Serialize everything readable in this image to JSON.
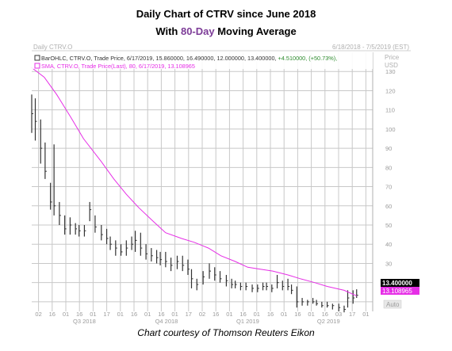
{
  "header": {
    "title_line1": "Daily Chart of CTRV since June 2018",
    "title_line2_pre": "With ",
    "title_line2_accent": "80-Day",
    "title_line2_post": " Moving Average"
  },
  "chart_header": {
    "label": "Daily CTRV.O",
    "date_range": "6/18/2018 - 7/5/2019 (EST)",
    "price_label": "Price",
    "currency_label": "USD",
    "auto_label": "Auto"
  },
  "legend": {
    "ohlc_line": "BarOHLC, CTRV.O, Trade Price, 6/17/2019, 15.860000, 16.490000, 12.000000, 13.400000,",
    "ohlc_change": "+4.510000, (+50.73%),",
    "sma_line": "SMA, CTRV.O, Trade Price(Last), 80, 6/17/2019, 13.108965"
  },
  "price_tags": {
    "last": "13.400000",
    "sma": "13.108965"
  },
  "caption": "Chart courtesy of Thomson Reuters Eikon",
  "colors": {
    "sma_line": "#e62ee6",
    "bars": "#333333",
    "grid": "#c8c8c8",
    "accent": "#7d3c98",
    "change_text": "#2e8b2e"
  },
  "chart_data": {
    "type": "line",
    "title": "Daily Chart of CTRV since June 2018 With 80-Day Moving Average",
    "ylim": [
      5,
      140
    ],
    "y_ticks": [
      10,
      20,
      30,
      40,
      50,
      60,
      70,
      80,
      90,
      100,
      110,
      120,
      130
    ],
    "x_tick_labels": [
      "02",
      "16",
      "01",
      "16",
      "01",
      "17",
      "01",
      "16",
      "01",
      "16",
      "01",
      "17",
      "02",
      "16",
      "01",
      "16",
      "01",
      "16",
      "01",
      "16",
      "01",
      "16",
      "03",
      "17",
      "01"
    ],
    "quarter_labels": [
      "Q3 2018",
      "Q4 2018",
      "Q1 2019",
      "Q2 2019"
    ],
    "grid": true,
    "x_range": [
      "2018-06-18",
      "2019-07-05"
    ],
    "series": [
      {
        "name": "BarOHLC",
        "kind": "ohlc",
        "x": [
          "2018-06-18",
          "2018-06-22",
          "2018-06-28",
          "2018-07-03",
          "2018-07-09",
          "2018-07-13",
          "2018-07-19",
          "2018-07-25",
          "2018-07-31",
          "2018-08-06",
          "2018-08-10",
          "2018-08-16",
          "2018-08-22",
          "2018-08-28",
          "2018-09-04",
          "2018-09-10",
          "2018-09-14",
          "2018-09-20",
          "2018-09-26",
          "2018-10-02",
          "2018-10-08",
          "2018-10-12",
          "2018-10-18",
          "2018-10-24",
          "2018-10-30",
          "2018-11-05",
          "2018-11-09",
          "2018-11-15",
          "2018-11-21",
          "2018-11-28",
          "2018-12-04",
          "2018-12-10",
          "2018-12-14",
          "2018-12-20",
          "2018-12-27",
          "2019-01-03",
          "2019-01-09",
          "2019-01-15",
          "2019-01-22",
          "2019-01-28",
          "2019-02-01",
          "2019-02-07",
          "2019-02-13",
          "2019-02-20",
          "2019-02-26",
          "2019-03-04",
          "2019-03-08",
          "2019-03-14",
          "2019-03-20",
          "2019-03-26",
          "2019-04-01",
          "2019-04-05",
          "2019-04-11",
          "2019-04-17",
          "2019-04-23",
          "2019-04-29",
          "2019-05-03",
          "2019-05-09",
          "2019-05-15",
          "2019-05-21",
          "2019-05-28",
          "2019-06-03",
          "2019-06-07",
          "2019-06-13",
          "2019-06-17"
        ],
        "high": [
          118,
          116,
          105,
          93,
          72,
          92,
          62,
          55,
          54,
          51,
          50,
          50,
          62,
          55,
          50,
          48,
          44,
          42,
          40,
          42,
          44,
          47,
          46,
          40,
          38,
          37,
          36,
          36,
          33,
          34,
          34,
          32,
          27,
          22,
          26,
          30,
          28,
          26,
          24,
          22,
          21,
          20,
          20,
          19,
          19,
          20,
          20,
          19,
          24,
          21,
          22,
          19,
          18,
          12,
          11,
          12,
          11,
          10,
          10,
          9,
          9,
          8,
          16,
          16,
          16.5
        ],
        "low": [
          98,
          94,
          82,
          74,
          58,
          55,
          50,
          45,
          45,
          45,
          44,
          44,
          52,
          46,
          42,
          40,
          37,
          34,
          34,
          34,
          37,
          36,
          34,
          32,
          31,
          30,
          29,
          28,
          26,
          27,
          26,
          24,
          17,
          16,
          19,
          22,
          21,
          20,
          18,
          17,
          17,
          16,
          16,
          15,
          15,
          16,
          16,
          15,
          17,
          16,
          16,
          14,
          7,
          8,
          8,
          9,
          8,
          7,
          7,
          6,
          5,
          4.5,
          7,
          9,
          12
        ],
        "close": [
          108,
          104,
          90,
          78,
          62,
          60,
          55,
          48,
          50,
          48,
          47,
          47,
          58,
          49,
          45,
          43,
          40,
          38,
          36,
          38,
          40,
          42,
          38,
          35,
          34,
          33,
          32,
          31,
          29,
          31,
          29,
          27,
          22,
          19,
          23,
          26,
          24,
          22,
          21,
          19,
          19,
          18,
          18,
          17,
          17,
          18,
          18,
          17,
          20,
          18,
          18,
          16,
          10,
          10,
          10,
          10,
          9,
          8,
          8,
          8,
          7,
          6,
          12,
          12,
          13.4
        ]
      },
      {
        "name": "SMA 80",
        "kind": "line",
        "x": [
          "2018-06-18",
          "2018-07-02",
          "2018-07-16",
          "2018-08-01",
          "2018-08-15",
          "2018-09-04",
          "2018-09-18",
          "2018-10-02",
          "2018-10-16",
          "2018-11-01",
          "2018-11-15",
          "2018-12-03",
          "2018-12-17",
          "2019-01-02",
          "2019-01-16",
          "2019-02-01",
          "2019-02-15",
          "2019-03-01",
          "2019-03-15",
          "2019-04-01",
          "2019-04-15",
          "2019-05-01",
          "2019-05-15",
          "2019-06-03",
          "2019-06-17"
        ],
        "values": [
          132,
          127,
          118,
          106,
          95,
          83,
          74,
          66,
          59,
          52,
          46,
          43,
          41,
          38,
          34,
          31,
          28,
          27,
          26,
          24,
          22,
          20,
          18,
          16,
          13.1
        ]
      }
    ]
  }
}
